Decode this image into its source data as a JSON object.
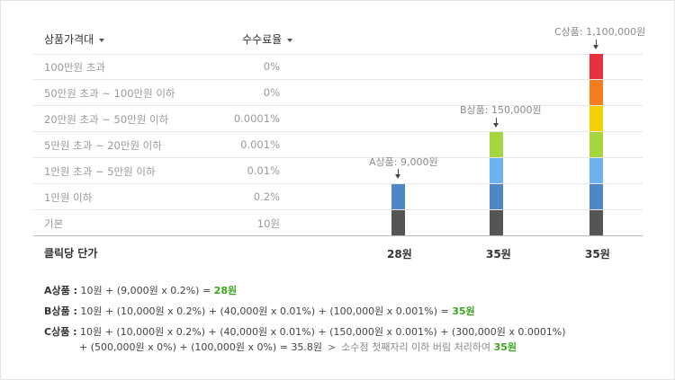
{
  "headers": {
    "price_range": "상품가격대",
    "fee_rate": "수수료율"
  },
  "rows": [
    {
      "range": "100만원 초과",
      "rate": "0%"
    },
    {
      "range": "50만원 초과 ~ 100만원 이하",
      "rate": "0%"
    },
    {
      "range": "20만원 초과 ~ 50만원 이하",
      "rate": "0.0001%"
    },
    {
      "range": "5만원 초과 ~ 20만원 이하",
      "rate": "0.001%"
    },
    {
      "range": "1만원 초과 ~ 5만원 이하",
      "rate": "0.01%"
    },
    {
      "range": "1만원 이하",
      "rate": "0.2%"
    },
    {
      "range": "기본",
      "rate": "10원"
    }
  ],
  "cost_per_click_label": "클릭당 단가",
  "products": [
    {
      "label": "A상품: 9,000원",
      "cpc": "28원"
    },
    {
      "label": "B상품: 150,000원",
      "cpc": "35원"
    },
    {
      "label": "C상품: 1,100,000원",
      "cpc": "35원"
    }
  ],
  "colors": {
    "base": "#555555",
    "tier_0_2": "#4f86c6",
    "tier_0_01": "#6cb2ee",
    "tier_0_001": "#a6d63e",
    "tier_0_0001": "#f5d000",
    "tier_0_over50": "#f47d20",
    "tier_0_over100": "#e8303d",
    "highlight_green": "#3aa61a"
  },
  "calculations": {
    "a": {
      "label": "A상품 :",
      "formula": "10원 + (9,000원 x 0.2%) =",
      "result": "28원"
    },
    "b": {
      "label": "B상품 :",
      "formula": "10원 + (10,000원 x 0.2%) + (40,000원 x 0.01%) + (100,000원 x 0.001%) =",
      "result": "35원"
    },
    "c": {
      "label": "C상품 :",
      "formula_line1": "10원 + (10,000원 x 0.2%) + (40,000원 x 0.01%) + (150,000원 x 0.001%) + (300,000원 x 0.0001%)",
      "formula_line2": "+ (500,000원 x 0%) + (100,000원 x 0%) = 35.8원",
      "arrow": ">",
      "note": "소수점 첫째자리 이하 버림 처리하여",
      "result": "35원"
    }
  }
}
